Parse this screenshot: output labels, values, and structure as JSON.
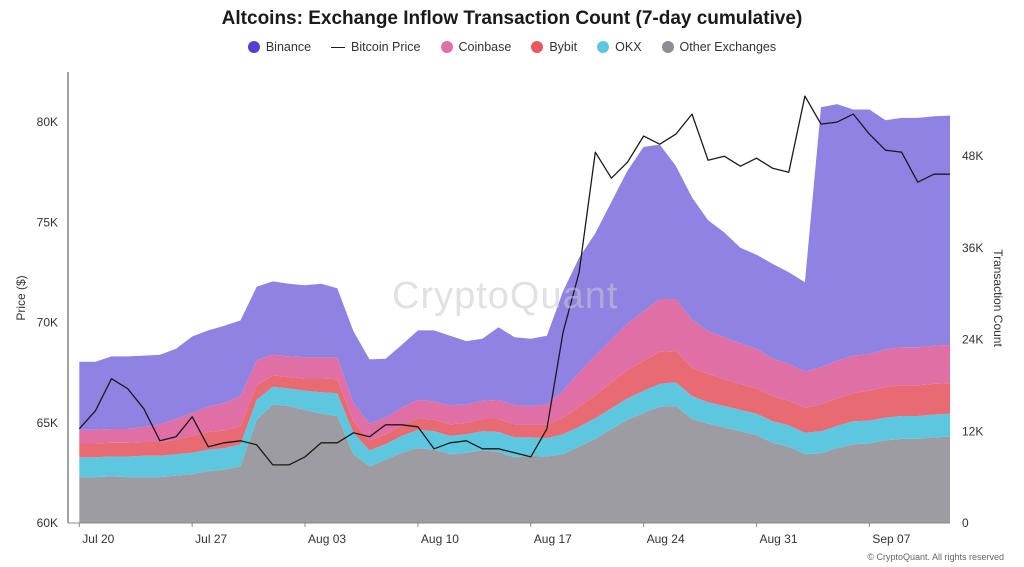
{
  "chart_data": {
    "type": "area",
    "title": "Altcoins: Exchange Inflow Transaction Count (7-day cumulative)",
    "ylabel_left": "Price ($)",
    "ylabel_right": "Transaction Count",
    "y_left_ticks": [
      "60K",
      "65K",
      "70K",
      "75K",
      "80K"
    ],
    "y_left_range": [
      60000,
      82500
    ],
    "y_right_ticks": [
      "0",
      "12K",
      "24K",
      "36K",
      "48K"
    ],
    "y_right_range": [
      0,
      59000
    ],
    "x_ticks": [
      {
        "label": "Jul 20",
        "day": 0
      },
      {
        "label": "Jul 27",
        "day": 7
      },
      {
        "label": "Aug 03",
        "day": 14
      },
      {
        "label": "Aug 10",
        "day": 21
      },
      {
        "label": "Aug 17",
        "day": 28
      },
      {
        "label": "Aug 24",
        "day": 35
      },
      {
        "label": "Aug 31",
        "day": 42
      },
      {
        "label": "Sep 07",
        "day": 49
      }
    ],
    "x_range": [
      -0.7,
      54
    ],
    "day": [
      0,
      1,
      2,
      3,
      4,
      5,
      6,
      7,
      8,
      9,
      10,
      11,
      12,
      13,
      14,
      15,
      16,
      17,
      18,
      19,
      20,
      21,
      22,
      23,
      24,
      25,
      26,
      27,
      28,
      29,
      30,
      31,
      32,
      33,
      34,
      35,
      36,
      37,
      38,
      39,
      40,
      41,
      42,
      43,
      44,
      45,
      46,
      47,
      48,
      49,
      50,
      51,
      52,
      53,
      54
    ],
    "series_stacked": [
      {
        "name": "Other Exchanges",
        "color": "#9d9ca2",
        "values": [
          6000,
          6000,
          6100,
          6000,
          6000,
          6000,
          6200,
          6400,
          6800,
          7000,
          7400,
          13500,
          15500,
          15300,
          14800,
          14300,
          14000,
          9000,
          7400,
          8300,
          9200,
          9800,
          9600,
          9000,
          9200,
          9500,
          9300,
          8600,
          8800,
          8700,
          9000,
          10000,
          11000,
          12300,
          13500,
          14400,
          15200,
          15300,
          13600,
          13000,
          12500,
          12000,
          11500,
          10500,
          10000,
          9000,
          9100,
          9800,
          10300,
          10400,
          10800,
          11000,
          11000,
          11200,
          11300
        ]
      },
      {
        "name": "OKX",
        "color": "#5ec7e0",
        "values": [
          2600,
          2600,
          2600,
          2700,
          2800,
          2800,
          2800,
          2800,
          2800,
          2800,
          2900,
          2600,
          2300,
          2300,
          2500,
          2800,
          3000,
          2800,
          2100,
          2000,
          2200,
          2400,
          2400,
          2400,
          2400,
          2500,
          2600,
          2600,
          2400,
          2400,
          2600,
          2600,
          2700,
          2700,
          2800,
          2900,
          3000,
          3100,
          3000,
          2800,
          2800,
          2800,
          2800,
          2800,
          2800,
          2800,
          2900,
          2900,
          3000,
          3000,
          3000,
          3000,
          3000,
          3000,
          3000
        ]
      },
      {
        "name": "Bybit",
        "color": "#e86b74",
        "values": [
          1800,
          1800,
          1800,
          1800,
          1800,
          1800,
          1900,
          2200,
          2300,
          2300,
          2400,
          1900,
          1500,
          1500,
          1600,
          1800,
          1800,
          1500,
          1300,
          1300,
          1400,
          1500,
          1500,
          1500,
          1500,
          1600,
          1700,
          1700,
          1700,
          1800,
          2200,
          2600,
          3000,
          3400,
          3700,
          3900,
          4200,
          4100,
          3700,
          3700,
          3500,
          3400,
          3300,
          3300,
          3200,
          3300,
          3500,
          3600,
          3700,
          3900,
          4000,
          4000,
          4000,
          4000,
          4000
        ]
      },
      {
        "name": "Coinbase",
        "color": "#e06fa6",
        "values": [
          1800,
          1800,
          1800,
          1800,
          2000,
          2300,
          2700,
          3000,
          3300,
          3600,
          3900,
          3300,
          2700,
          2700,
          2800,
          2800,
          2900,
          2400,
          2200,
          2200,
          2300,
          2400,
          2400,
          2500,
          2400,
          2400,
          2500,
          2500,
          2400,
          2600,
          3500,
          4500,
          5200,
          5600,
          6100,
          6500,
          6900,
          6800,
          6300,
          5600,
          5500,
          5300,
          5200,
          4900,
          4800,
          4700,
          4900,
          4900,
          4900,
          4800,
          4900,
          5000,
          5000,
          5000,
          5000
        ]
      },
      {
        "name": "Binance",
        "color": "#8f82e3",
        "values": [
          8900,
          8900,
          9500,
          9500,
          9300,
          9100,
          9200,
          10000,
          10000,
          10100,
          9900,
          9600,
          9600,
          9500,
          9400,
          9600,
          9000,
          9400,
          8400,
          7700,
          8200,
          9100,
          9300,
          9100,
          8300,
          8100,
          9500,
          8900,
          8800,
          9000,
          13000,
          15000,
          16000,
          18000,
          20000,
          21500,
          20200,
          17400,
          16000,
          14500,
          13700,
          12500,
          12300,
          12400,
          12000,
          11700,
          34000,
          33600,
          32200,
          32000,
          30000,
          30000,
          30000,
          30000,
          30000
        ]
      }
    ],
    "line_series": {
      "name": "Bitcoin Price",
      "color": "#1a1a1a",
      "values": [
        64700,
        65600,
        67200,
        66700,
        65700,
        64100,
        64300,
        65300,
        63800,
        64000,
        64100,
        63900,
        62900,
        62900,
        63300,
        64000,
        64000,
        64500,
        64300,
        64900,
        64900,
        64800,
        63700,
        64000,
        64100,
        63700,
        63700,
        63500,
        63300,
        64700,
        69500,
        72500,
        78500,
        77200,
        78000,
        79300,
        78900,
        79400,
        80400,
        78100,
        78300,
        77800,
        78200,
        77700,
        77500,
        81300,
        79900,
        80000,
        80400,
        79400,
        78600,
        78500,
        77000,
        77400,
        77400
      ]
    }
  },
  "legend": [
    {
      "label": "Binance",
      "color": "#5440d0",
      "kind": "dot"
    },
    {
      "label": "Bitcoin Price",
      "color": "#1a1a1a",
      "kind": "line"
    },
    {
      "label": "Coinbase",
      "color": "#e06fa6",
      "kind": "dot"
    },
    {
      "label": "Bybit",
      "color": "#e8585f",
      "kind": "dot"
    },
    {
      "label": "OKX",
      "color": "#5ec7e0",
      "kind": "dot"
    },
    {
      "label": "Other Exchanges",
      "color": "#8d8c92",
      "kind": "dot"
    }
  ],
  "watermark": "CryptoQuant",
  "copyright": "© CryptoQuant. All rights reserved"
}
